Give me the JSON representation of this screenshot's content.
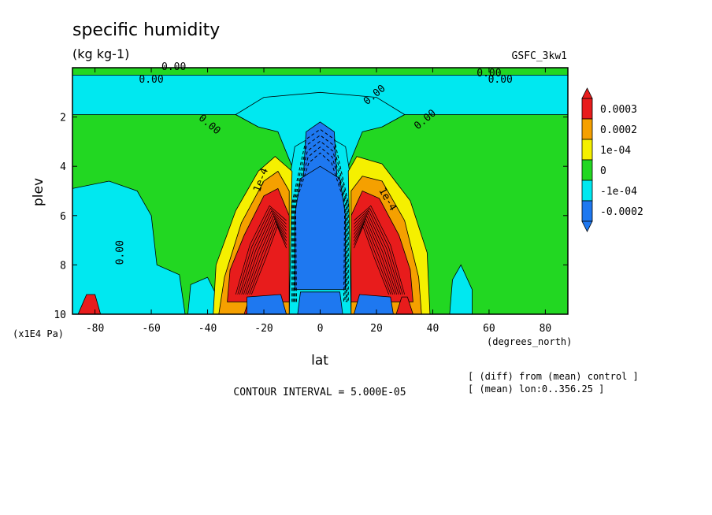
{
  "header": {
    "title": "specific humidity",
    "units": "(kg kg-1)",
    "model": "GSFC_3kw1"
  },
  "footer": {
    "contour_interval": "CONTOUR INTERVAL = 5.000E-05",
    "note_line1": "[ (diff) from (mean) control ]",
    "note_line2": "[ (mean) lon:0..356.25 ]"
  },
  "colors": {
    "red": "#e81c1c",
    "orange": "#f5a000",
    "yellow": "#f5f000",
    "green": "#22d722",
    "cyan": "#00e8f0",
    "blue": "#1e78f0"
  },
  "chart_data": {
    "type": "heatmap",
    "title": "specific humidity",
    "subtitle": "(kg kg-1)",
    "xlabel": "lat",
    "xunits": "(degrees_north)",
    "ylabel": "plev",
    "yunits": "(x1E4 Pa)",
    "xlim": [
      -88,
      88
    ],
    "ylim": [
      10,
      0
    ],
    "x_ticks": [
      -80,
      -60,
      -40,
      -20,
      0,
      20,
      40,
      60,
      80
    ],
    "x_tick_labels": [
      "-80",
      "-60",
      "-40",
      "-20",
      "0",
      "20",
      "40",
      "60",
      "80"
    ],
    "y_ticks": [
      2,
      4,
      6,
      8,
      10
    ],
    "y_tick_labels": [
      "2",
      "4",
      "6",
      "8",
      "10"
    ],
    "contour_interval": 5e-05,
    "contour_labels": [
      "0.00",
      "0.00",
      "0.00",
      "0.00",
      "0.00",
      "0.00",
      "0.00",
      "0.00",
      "1e-4",
      "1e-4"
    ],
    "colorbar": {
      "labels": [
        "0.0003",
        "0.0002",
        "1e-04",
        "0",
        "-1e-04",
        "-0.0002"
      ],
      "bins": [
        "red",
        "orange",
        "yellow",
        "green",
        "cyan",
        "blue"
      ]
    },
    "regions": [
      {
        "color": "green",
        "desc": "background near zero",
        "points": [
          [
            -88,
            0.0
          ],
          [
            88,
            0.0
          ],
          [
            88,
            10
          ],
          [
            -88,
            10
          ]
        ]
      },
      {
        "color": "cyan",
        "desc": "upper band",
        "points": [
          [
            -88,
            0.3
          ],
          [
            88,
            0.3
          ],
          [
            88,
            1.9
          ],
          [
            30,
            1.9
          ],
          [
            22,
            2.4
          ],
          [
            16,
            2.3
          ],
          [
            12,
            1.5
          ],
          [
            0,
            1.4
          ],
          [
            -12,
            1.5
          ],
          [
            -16,
            2.3
          ],
          [
            -22,
            2.4
          ],
          [
            -30,
            1.9
          ],
          [
            -88,
            1.9
          ]
        ]
      },
      {
        "color": "cyan",
        "desc": "upper cyan funnel",
        "points": [
          [
            -30,
            1.9
          ],
          [
            -22,
            2.4
          ],
          [
            -15,
            2.6
          ],
          [
            -10,
            4.0
          ],
          [
            10,
            4.0
          ],
          [
            15,
            2.6
          ],
          [
            22,
            2.4
          ],
          [
            30,
            1.9
          ],
          [
            20,
            1.2
          ],
          [
            0,
            1.0
          ],
          [
            -20,
            1.2
          ]
        ]
      },
      {
        "color": "cyan",
        "desc": "left lower",
        "points": [
          [
            -88,
            4.9
          ],
          [
            -75,
            4.6
          ],
          [
            -65,
            5.0
          ],
          [
            -60,
            6.0
          ],
          [
            -58,
            8.0
          ],
          [
            -50,
            8.4
          ],
          [
            -48,
            10
          ],
          [
            -88,
            10
          ]
        ]
      },
      {
        "color": "cyan",
        "desc": "left small",
        "points": [
          [
            -47,
            10
          ],
          [
            -46,
            8.8
          ],
          [
            -40,
            8.5
          ],
          [
            -37,
            9.2
          ],
          [
            -35,
            10
          ]
        ]
      },
      {
        "color": "cyan",
        "desc": "right lower",
        "points": [
          [
            46,
            10
          ],
          [
            47,
            8.6
          ],
          [
            50,
            8.0
          ],
          [
            54,
            9.0
          ],
          [
            54,
            10
          ]
        ]
      },
      {
        "color": "cyan",
        "desc": "center column",
        "points": [
          [
            -12,
            10
          ],
          [
            -13,
            6.0
          ],
          [
            -9,
            3.2
          ],
          [
            0,
            2.6
          ],
          [
            9,
            3.2
          ],
          [
            13,
            6.0
          ],
          [
            12,
            10
          ]
        ]
      },
      {
        "color": "yellow",
        "desc": "left yellow",
        "points": [
          [
            -38,
            10
          ],
          [
            -37,
            8.0
          ],
          [
            -30,
            5.8
          ],
          [
            -22,
            4.2
          ],
          [
            -16,
            3.6
          ],
          [
            -10,
            4.2
          ],
          [
            -11,
            10
          ]
        ]
      },
      {
        "color": "yellow",
        "desc": "right yellow",
        "points": [
          [
            11,
            10
          ],
          [
            10,
            4.2
          ],
          [
            13,
            3.6
          ],
          [
            22,
            3.9
          ],
          [
            32,
            5.4
          ],
          [
            38,
            7.5
          ],
          [
            39,
            10
          ]
        ]
      },
      {
        "color": "orange",
        "desc": "left orange",
        "points": [
          [
            -36,
            10
          ],
          [
            -34,
            8.5
          ],
          [
            -28,
            6.3
          ],
          [
            -20,
            4.6
          ],
          [
            -15,
            4.2
          ],
          [
            -11,
            5.0
          ],
          [
            -11,
            10
          ]
        ]
      },
      {
        "color": "orange",
        "desc": "right orange",
        "points": [
          [
            11,
            10
          ],
          [
            11,
            5.0
          ],
          [
            15,
            4.4
          ],
          [
            22,
            4.6
          ],
          [
            30,
            6.2
          ],
          [
            35,
            8.5
          ],
          [
            36,
            10
          ]
        ]
      },
      {
        "color": "red",
        "desc": "left red core",
        "points": [
          [
            -33,
            9.5
          ],
          [
            -32,
            8.2
          ],
          [
            -27,
            6.8
          ],
          [
            -20,
            5.2
          ],
          [
            -15,
            4.9
          ],
          [
            -11,
            6.0
          ],
          [
            -11,
            9.5
          ]
        ]
      },
      {
        "color": "red",
        "desc": "right red core",
        "points": [
          [
            11,
            9.5
          ],
          [
            11,
            6.0
          ],
          [
            15,
            5.0
          ],
          [
            21,
            5.3
          ],
          [
            28,
            6.8
          ],
          [
            32,
            8.2
          ],
          [
            33,
            9.5
          ]
        ]
      },
      {
        "color": "red",
        "desc": "far left spike",
        "points": [
          [
            -86,
            10
          ],
          [
            -83,
            9.2
          ],
          [
            -80,
            9.2
          ],
          [
            -78,
            10
          ]
        ]
      },
      {
        "color": "red",
        "desc": "lower left spike",
        "points": [
          [
            -27,
            10
          ],
          [
            -25,
            9.3
          ],
          [
            -22,
            9.3
          ],
          [
            -20,
            10
          ]
        ]
      },
      {
        "color": "red",
        "desc": "lower right spike",
        "points": [
          [
            27,
            10
          ],
          [
            29,
            9.3
          ],
          [
            31,
            9.3
          ],
          [
            33,
            10
          ]
        ]
      },
      {
        "color": "blue",
        "desc": "upper center blue",
        "points": [
          [
            -5,
            2.6
          ],
          [
            0,
            2.2
          ],
          [
            5,
            2.6
          ],
          [
            6,
            4.5
          ],
          [
            -6,
            4.5
          ]
        ]
      },
      {
        "color": "blue",
        "desc": "central blue column",
        "points": [
          [
            -9,
            9.0
          ],
          [
            -9,
            6.0
          ],
          [
            -7,
            4.5
          ],
          [
            0,
            4.0
          ],
          [
            7,
            4.5
          ],
          [
            9,
            6.0
          ],
          [
            9,
            9.0
          ]
        ]
      },
      {
        "color": "blue",
        "desc": "bottom left blue",
        "points": [
          [
            -26,
            10
          ],
          [
            -26,
            9.3
          ],
          [
            -14,
            9.2
          ],
          [
            -12,
            10
          ]
        ]
      },
      {
        "color": "blue",
        "desc": "bottom right blue",
        "points": [
          [
            12,
            10
          ],
          [
            14,
            9.2
          ],
          [
            25,
            9.3
          ],
          [
            26,
            10
          ]
        ]
      },
      {
        "color": "blue",
        "desc": "bottom center blue",
        "points": [
          [
            -8,
            10
          ],
          [
            -7,
            9.1
          ],
          [
            7,
            9.1
          ],
          [
            8,
            10
          ]
        ]
      }
    ]
  }
}
